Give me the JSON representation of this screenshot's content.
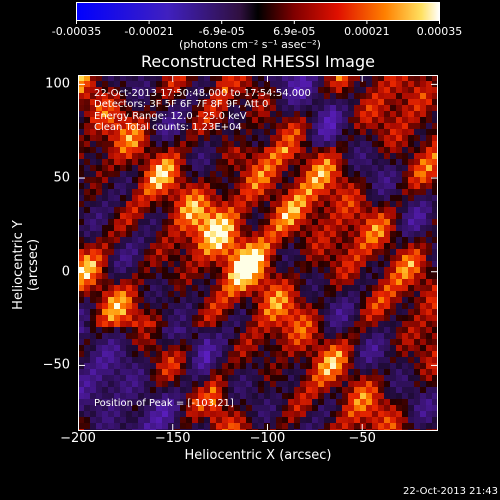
{
  "colorbar": {
    "tick_labels": [
      "-0.00035",
      "-0.00021",
      "-6.9e-05",
      "6.9e-05",
      "0.00021",
      "0.00035"
    ],
    "units": "(photons cm⁻² s⁻¹ asec⁻²)"
  },
  "overlay": {
    "time_range": "22-Oct-2013 17:50:48.000 to 17:54:54.000",
    "detectors": "Detectors: 3F 5F 6F 7F 8F 9F, Att 0",
    "energy_range": "Energy Range: 12.0 - 25.0 keV",
    "clean_counts": "Clean     Total counts: 1.23E+04",
    "peak": "Position of Peak = [-103,21]"
  },
  "footer": {
    "timestamp": "22-Oct-2013 21:43"
  },
  "chart_data": {
    "type": "heatmap",
    "title": "Reconstructed RHESSI Image",
    "xlabel": "Heliocentric X (arcsec)",
    "ylabel": "Heliocentric Y (arcsec)",
    "xlim": [
      -200,
      -10
    ],
    "ylim": [
      -85,
      105
    ],
    "x_ticks": [
      -200,
      -150,
      -100,
      -50
    ],
    "y_ticks": [
      100,
      50,
      0,
      -50
    ],
    "x_tick_labels": [
      "−200",
      "−150",
      "−100",
      "−50"
    ],
    "y_tick_labels": [
      "100",
      "50",
      "0",
      "−50"
    ],
    "value_range": [
      -0.00035,
      0.00035
    ],
    "peak_position": [
      -103,
      21
    ]
  }
}
